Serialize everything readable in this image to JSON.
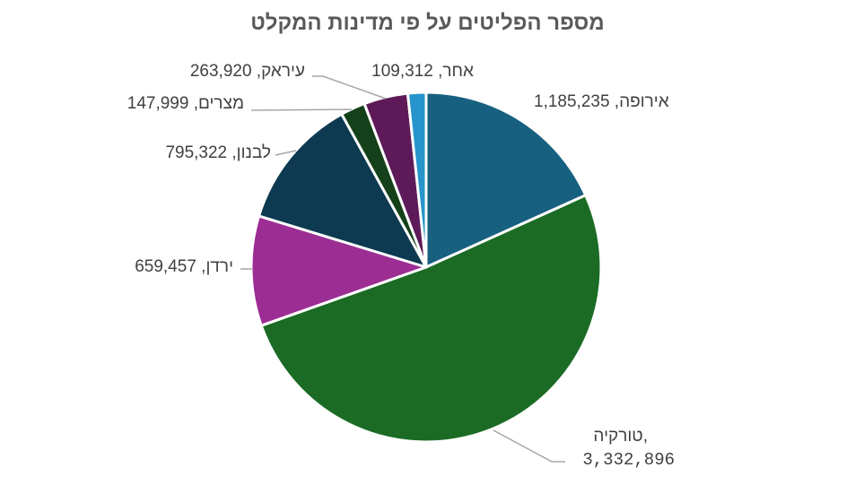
{
  "chart_data": {
    "type": "pie",
    "title": "מספר הפליטים על פי מדינות המקלט",
    "slices": [
      {
        "label": "אירופה",
        "value": 1185235,
        "value_text": "1,185,235",
        "color": "#17607f"
      },
      {
        "label": "טורקיה",
        "value": 3332896,
        "value_text": "3,332,896",
        "color": "#1b6b25"
      },
      {
        "label": "ירדן",
        "value": 659457,
        "value_text": "659,457",
        "color": "#9c2d93"
      },
      {
        "label": "לבנון",
        "value": 795322,
        "value_text": "795,322",
        "color": "#0d3a51"
      },
      {
        "label": "מצרים",
        "value": 147999,
        "value_text": "147,999",
        "color": "#144119"
      },
      {
        "label": "עיראק",
        "value": 263920,
        "value_text": "263,920",
        "color": "#5e1a58"
      },
      {
        "label": "אחר",
        "value": 109312,
        "value_text": "109,312",
        "color": "#2795cb"
      }
    ],
    "legend": "none"
  }
}
